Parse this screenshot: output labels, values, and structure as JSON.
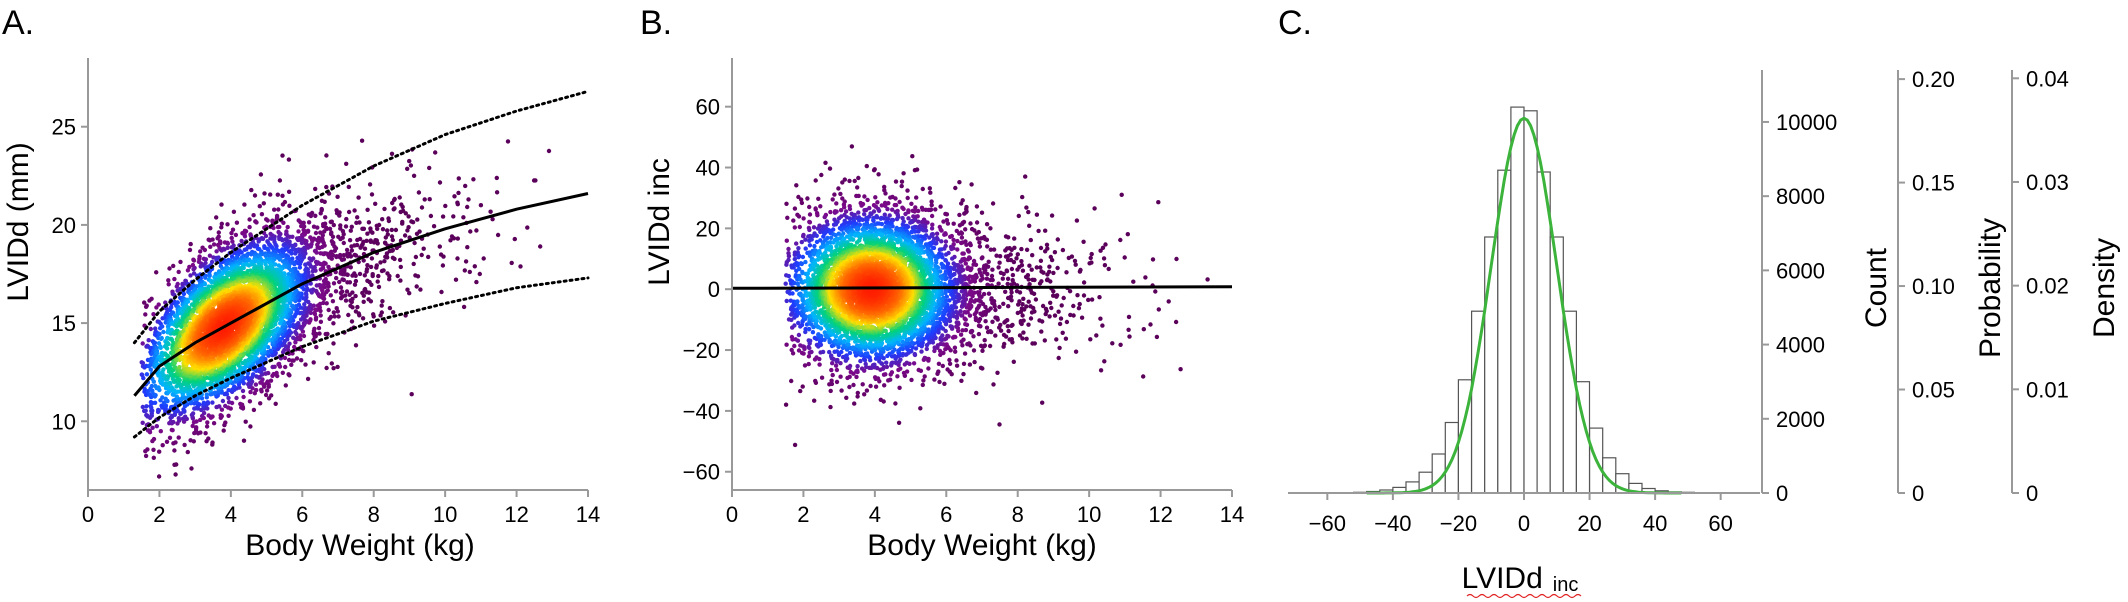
{
  "panels": [
    {
      "letter": "A."
    },
    {
      "letter": "B."
    },
    {
      "letter": "C."
    }
  ],
  "chart_data": [
    {
      "type": "scatter",
      "panel": "A.",
      "xlabel": "Body Weight (kg)",
      "ylabel": "LVIDd (mm)",
      "xlim": [
        0,
        14
      ],
      "ylim": [
        6.5,
        28.5
      ],
      "xticks": [
        0,
        2,
        4,
        6,
        8,
        10,
        12,
        14
      ],
      "yticks": [
        10,
        15,
        20,
        25
      ],
      "colormap": [
        "#5a005a",
        "#7b0a8a",
        "#1e3cff",
        "#00b4ff",
        "#00d27a",
        "#ffe000",
        "#ff6a00",
        "#ff1e00"
      ],
      "density_peak": {
        "x": 3.8,
        "y": 14.8
      },
      "curves": [
        {
          "style": "solid",
          "color": "#000000",
          "points": [
            [
              1.3,
              11.3
            ],
            [
              2,
              12.8
            ],
            [
              3,
              14.0
            ],
            [
              4,
              15.0
            ],
            [
              6,
              17.0
            ],
            [
              8,
              18.6
            ],
            [
              10,
              19.8
            ],
            [
              12,
              20.8
            ],
            [
              14,
              21.6
            ]
          ]
        },
        {
          "style": "dotted",
          "color": "#000000",
          "points": [
            [
              1.3,
              14.0
            ],
            [
              2,
              15.6
            ],
            [
              3,
              17.2
            ],
            [
              4,
              18.6
            ],
            [
              6,
              21.0
            ],
            [
              8,
              23.0
            ],
            [
              10,
              24.6
            ],
            [
              12,
              25.8
            ],
            [
              14,
              26.8
            ]
          ]
        },
        {
          "style": "dotted",
          "color": "#000000",
          "points": [
            [
              1.3,
              9.2
            ],
            [
              2,
              10.2
            ],
            [
              3,
              11.3
            ],
            [
              4,
              12.2
            ],
            [
              6,
              13.8
            ],
            [
              8,
              15.1
            ],
            [
              10,
              16.0
            ],
            [
              12,
              16.8
            ],
            [
              14,
              17.3
            ]
          ]
        }
      ]
    },
    {
      "type": "scatter",
      "panel": "B.",
      "xlabel": "Body Weight (kg)",
      "ylabel": "LVIDd inc",
      "xlim": [
        0,
        14
      ],
      "ylim": [
        -66,
        76
      ],
      "xticks": [
        0,
        2,
        4,
        6,
        8,
        10,
        12,
        14
      ],
      "yticks": [
        -60,
        -40,
        -20,
        0,
        20,
        40,
        60
      ],
      "colormap": [
        "#5a005a",
        "#7b0a8a",
        "#1e3cff",
        "#00b4ff",
        "#00d27a",
        "#ffe000",
        "#ff6a00",
        "#ff1e00"
      ],
      "density_peak": {
        "x": 3.9,
        "y": 0
      },
      "curves": [
        {
          "style": "solid",
          "color": "#000000",
          "points": [
            [
              0,
              0.3
            ],
            [
              14,
              0.8
            ]
          ]
        }
      ]
    },
    {
      "type": "bar",
      "panel": "C.",
      "xlabel": "LVIDd",
      "xlabel_sub": "inc",
      "xlim": [
        -72,
        72
      ],
      "xticks": [
        -60,
        -40,
        -20,
        0,
        20,
        40,
        60
      ],
      "bin_width": 4,
      "bin_left_edges": [
        -56,
        -52,
        -48,
        -44,
        -40,
        -36,
        -32,
        -28,
        -24,
        -20,
        -16,
        -12,
        -8,
        -4,
        0,
        4,
        8,
        12,
        16,
        20,
        24,
        28,
        32,
        36,
        40,
        44,
        48,
        52,
        56,
        60,
        64
      ],
      "counts": [
        10,
        20,
        40,
        80,
        150,
        300,
        560,
        1050,
        1900,
        3050,
        4900,
        6900,
        8700,
        10400,
        10300,
        8650,
        6900,
        4900,
        3000,
        1750,
        950,
        520,
        260,
        120,
        60,
        30,
        20,
        10,
        10,
        5,
        5
      ],
      "fit_curve": {
        "type": "normal",
        "mean": 0,
        "sd": 10,
        "peak_count": 10100,
        "color": "#3cb43c"
      },
      "y_axes": [
        {
          "label": "Count",
          "ylim": [
            0,
            11400
          ],
          "ticks": [
            0,
            2000,
            4000,
            6000,
            8000,
            10000
          ]
        },
        {
          "label": "Probability",
          "ylim": [
            0,
            0.2044
          ],
          "ticks": [
            0,
            0.05,
            0.1,
            0.15,
            0.2
          ],
          "tick_labels": [
            "0",
            "0.05",
            "0.10",
            "0.15",
            "0.20"
          ]
        },
        {
          "label": "Density",
          "ylim": [
            0,
            0.0408
          ],
          "ticks": [
            0,
            0.01,
            0.02,
            0.03,
            0.04
          ],
          "tick_labels": [
            "0",
            "0.01",
            "0.02",
            "0.03",
            "0.04"
          ]
        }
      ]
    }
  ]
}
